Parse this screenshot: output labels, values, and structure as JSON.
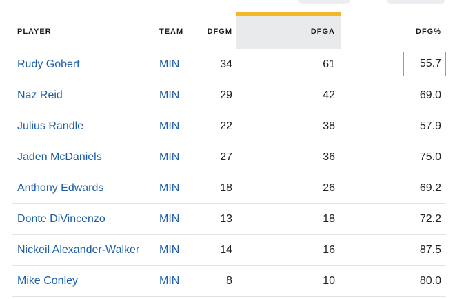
{
  "header": {
    "player": "PLAYER",
    "team": "TEAM",
    "dfgm": "DFGM",
    "dfga": "DFGA",
    "dfg_pct": "DFG%"
  },
  "sorted_column": "DFGA",
  "colors": {
    "link": "#1d5fa6",
    "sort_accent": "#f2b82a",
    "highlight_border": "#e8834a"
  },
  "rows": [
    {
      "player": "Rudy Gobert",
      "team": "MIN",
      "dfgm": "34",
      "dfga": "61",
      "dfg_pct": "55.7"
    },
    {
      "player": "Naz Reid",
      "team": "MIN",
      "dfgm": "29",
      "dfga": "42",
      "dfg_pct": "69.0"
    },
    {
      "player": "Julius Randle",
      "team": "MIN",
      "dfgm": "22",
      "dfga": "38",
      "dfg_pct": "57.9"
    },
    {
      "player": "Jaden McDaniels",
      "team": "MIN",
      "dfgm": "27",
      "dfga": "36",
      "dfg_pct": "75.0"
    },
    {
      "player": "Anthony Edwards",
      "team": "MIN",
      "dfgm": "18",
      "dfga": "26",
      "dfg_pct": "69.2"
    },
    {
      "player": "Donte DiVincenzo",
      "team": "MIN",
      "dfgm": "13",
      "dfga": "18",
      "dfg_pct": "72.2"
    },
    {
      "player": "Nickeil Alexander-Walker",
      "team": "MIN",
      "dfgm": "14",
      "dfga": "16",
      "dfg_pct": "87.5"
    },
    {
      "player": "Mike Conley",
      "team": "MIN",
      "dfgm": "8",
      "dfga": "10",
      "dfg_pct": "80.0"
    }
  ]
}
